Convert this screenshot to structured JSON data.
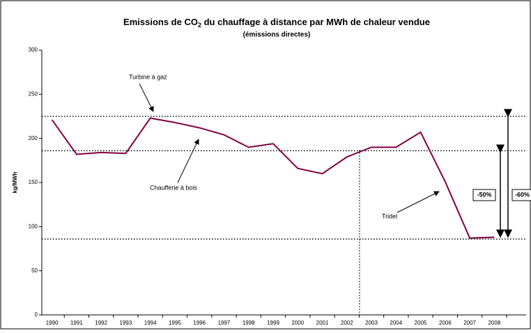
{
  "chart_data": {
    "type": "line",
    "title_parts": [
      "Emissions de CO",
      "2",
      " du chauffage à distance par MWh de chaleur vendue"
    ],
    "subtitle": "(émissions directes)",
    "y_label": "kg/MWh",
    "categories": [
      "1990",
      "1991",
      "1992",
      "1993",
      "1994",
      "1995",
      "1996",
      "1997",
      "1998",
      "1999",
      "2000",
      "2001",
      "2002",
      "2003",
      "2004",
      "2005",
      "2006",
      "2007",
      "2008"
    ],
    "values": [
      221,
      182,
      184,
      183,
      223,
      218,
      212,
      204,
      190,
      194,
      166,
      160,
      179,
      190,
      190,
      207,
      151,
      87,
      88
    ],
    "color": "#800040",
    "ylim": [
      0,
      300
    ],
    "yticks": [
      0,
      50,
      100,
      150,
      200,
      250,
      300
    ],
    "reference_lines": [
      225,
      186,
      86
    ],
    "annotations": [
      "Turbine à gaz",
      "Chaufferie à bois",
      "Tridel",
      "-50%",
      "-60%"
    ]
  }
}
